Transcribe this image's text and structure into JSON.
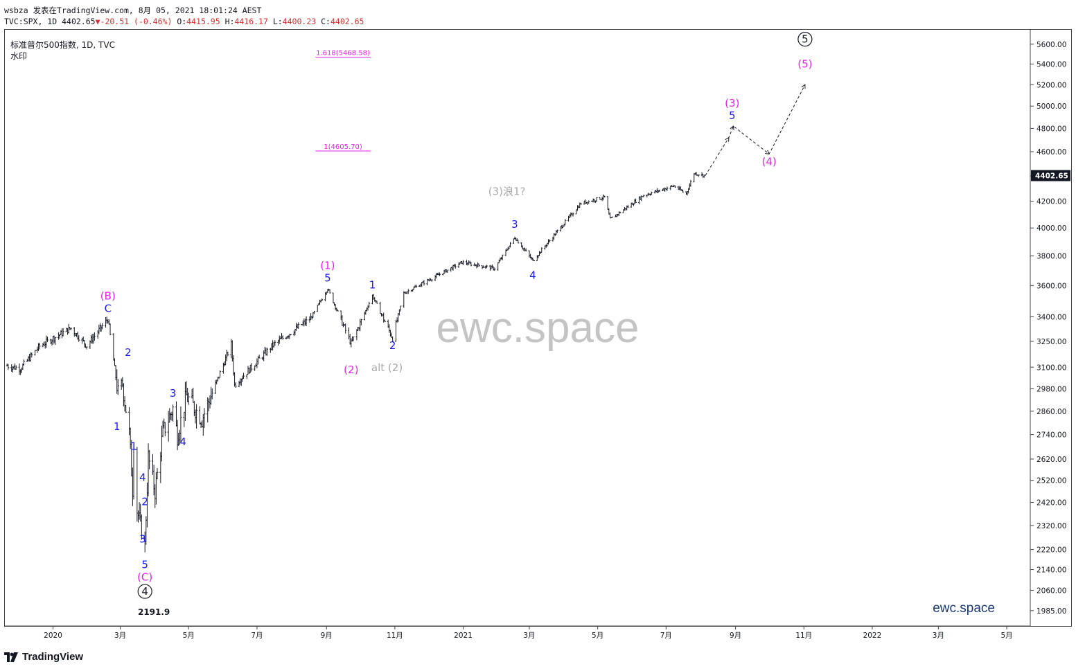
{
  "header": {
    "publisher": "wsbza 发表在TradingView.com, 8月 05, 2021 18:01:24 AEST",
    "ticker": "TVC:SPX, 1D",
    "last": "4402.65",
    "change": "-20.51 (-0.46%)",
    "o_label": "O:",
    "o_value": "4415.95",
    "h_label": "H:",
    "h_value": "4416.17",
    "l_label": "L:",
    "l_value": "4400.23",
    "c_label": "C:",
    "c_value": "4402.65",
    "down_arrow": "▼"
  },
  "symbol_info": {
    "name": "标准普尔500指数, 1D, TVC",
    "sub": "水印"
  },
  "watermark": "ewc.space",
  "brand_corner": "ewc.space",
  "footer": {
    "logo_text": "TradingView"
  },
  "colors": {
    "magenta": "#e91ee9",
    "blue": "#1a1aee",
    "gray": "#a9a9a9",
    "candle": "#131722",
    "price_tag": "#131722"
  },
  "chart_data": {
    "type": "ohlc",
    "title": "",
    "ylabel": "",
    "yscale": "log",
    "ylim": [
      1930,
      5750
    ],
    "y_ticks": [
      5600,
      5400,
      5200,
      5000,
      4800,
      4600,
      4400,
      4200,
      4000,
      3800,
      3600,
      3400,
      3250,
      3100,
      2980,
      2860,
      2740,
      2620,
      2520,
      2420,
      2320,
      2220,
      2140,
      2060,
      1985
    ],
    "y_tick_labels": [
      "5600.00",
      "5400.00",
      "5200.00",
      "5000.00",
      "4800.00",
      "4600.00",
      "4400.00",
      "4200.00",
      "4000.00",
      "3800.00",
      "3600.00",
      "3400.00",
      "3250.00",
      "3100.00",
      "2980.00",
      "2860.00",
      "2740.00",
      "2620.00",
      "2520.00",
      "2420.00",
      "2320.00",
      "2220.00",
      "2140.00",
      "2060.00",
      "1985.00"
    ],
    "last_price_label": "4402.65",
    "x_ticks": [
      {
        "label": "2020",
        "date": "2020-01-01"
      },
      {
        "label": "3月",
        "date": "2020-03-01"
      },
      {
        "label": "5月",
        "date": "2020-05-01"
      },
      {
        "label": "7月",
        "date": "2020-07-01"
      },
      {
        "label": "9月",
        "date": "2020-09-01"
      },
      {
        "label": "11月",
        "date": "2020-11-01"
      },
      {
        "label": "2021",
        "date": "2021-01-01"
      },
      {
        "label": "3月",
        "date": "2021-03-01"
      },
      {
        "label": "5月",
        "date": "2021-05-01"
      },
      {
        "label": "7月",
        "date": "2021-07-01"
      },
      {
        "label": "9月",
        "date": "2021-09-01"
      },
      {
        "label": "11月",
        "date": "2021-11-01"
      },
      {
        "label": "2022",
        "date": "2022-01-01"
      },
      {
        "label": "3月",
        "date": "2022-03-01"
      },
      {
        "label": "5月",
        "date": "2022-05-01"
      }
    ],
    "price_path": [
      [
        "2019-11-21",
        3108
      ],
      [
        "2019-12-03",
        3093
      ],
      [
        "2019-12-20",
        3222
      ],
      [
        "2020-01-17",
        3330
      ],
      [
        "2020-01-31",
        3225
      ],
      [
        "2020-02-19",
        3386
      ],
      [
        "2020-02-28",
        2954
      ],
      [
        "2020-03-03",
        3003
      ],
      [
        "2020-03-09",
        2746
      ],
      [
        "2020-03-12",
        2480
      ],
      [
        "2020-03-13",
        2711
      ],
      [
        "2020-03-16",
        2386
      ],
      [
        "2020-03-23",
        2237
      ],
      [
        "2020-03-26",
        2630
      ],
      [
        "2020-04-01",
        2470
      ],
      [
        "2020-04-08",
        2750
      ],
      [
        "2020-04-17",
        2875
      ],
      [
        "2020-04-21",
        2737
      ],
      [
        "2020-04-29",
        2940
      ],
      [
        "2020-05-13",
        2820
      ],
      [
        "2020-06-08",
        3232
      ],
      [
        "2020-06-11",
        3002
      ],
      [
        "2020-07-15",
        3227
      ],
      [
        "2020-08-18",
        3390
      ],
      [
        "2020-09-02",
        3580
      ],
      [
        "2020-09-23",
        3237
      ],
      [
        "2020-10-12",
        3535
      ],
      [
        "2020-10-30",
        3270
      ],
      [
        "2020-11-09",
        3550
      ],
      [
        "2020-12-31",
        3756
      ],
      [
        "2021-01-29",
        3714
      ],
      [
        "2021-02-16",
        3932
      ],
      [
        "2021-03-04",
        3768
      ],
      [
        "2021-04-16",
        4185
      ],
      [
        "2021-05-07",
        4232
      ],
      [
        "2021-05-12",
        4063
      ],
      [
        "2021-06-11",
        4247
      ],
      [
        "2021-07-08",
        4320
      ],
      [
        "2021-07-19",
        4258
      ],
      [
        "2021-07-26",
        4422
      ],
      [
        "2021-08-05",
        4402.65
      ]
    ],
    "projection": [
      [
        "2021-08-05",
        4402.65
      ],
      [
        "2021-08-26",
        4720
      ],
      [
        "2021-08-30",
        4820
      ],
      [
        "2021-10-01",
        4580
      ],
      [
        "2021-11-02",
        5200
      ]
    ],
    "fib_levels": [
      {
        "label": "1.618(5468.58)",
        "value": 5468.58
      },
      {
        "label": "1(4605.70)",
        "value": 4605.7
      }
    ],
    "annotations": [
      {
        "text": "(B)",
        "color": "magenta",
        "date": "2020-02-19",
        "price": 3386,
        "pos": "above2"
      },
      {
        "text": "C",
        "color": "blue",
        "date": "2020-02-19",
        "price": 3386,
        "pos": "above"
      },
      {
        "text": "2",
        "color": "blue",
        "date": "2020-03-03",
        "price": 3180,
        "pos": "right"
      },
      {
        "text": "1",
        "color": "blue",
        "date": "2020-02-27",
        "price": 2820,
        "pos": "below"
      },
      {
        "text": "1",
        "color": "blue",
        "date": "2020-03-13",
        "price": 2720,
        "pos": "below"
      },
      {
        "text": "4",
        "color": "blue",
        "date": "2020-03-16",
        "price": 2530,
        "pos": "right"
      },
      {
        "text": "2",
        "color": "blue",
        "date": "2020-03-18",
        "price": 2420,
        "pos": "right"
      },
      {
        "text": "3",
        "color": "blue",
        "date": "2020-03-16",
        "price": 2260,
        "pos": "right"
      },
      {
        "text": "5",
        "color": "blue",
        "date": "2020-03-23",
        "price": 2190,
        "pos": "below"
      },
      {
        "text": "(C)",
        "color": "magenta",
        "date": "2020-03-23",
        "price": 2140,
        "pos": "below"
      },
      {
        "text": "4",
        "color": "black",
        "circle": true,
        "date": "2020-03-23",
        "price": 2085,
        "pos": "below"
      },
      {
        "text": "2191.9",
        "color": "black",
        "bold": true,
        "date": "2020-03-31",
        "price": 2010,
        "pos": "below"
      },
      {
        "text": "3",
        "color": "blue",
        "date": "2020-04-17",
        "price": 2900,
        "pos": "above"
      },
      {
        "text": "4",
        "color": "blue",
        "date": "2020-04-21",
        "price": 2700,
        "pos": "right"
      },
      {
        "text": "(1)",
        "color": "magenta",
        "date": "2020-09-02",
        "price": 3580,
        "pos": "above2"
      },
      {
        "text": "5",
        "color": "blue",
        "date": "2020-09-02",
        "price": 3580,
        "pos": "above"
      },
      {
        "text": "(2)",
        "color": "magenta",
        "date": "2020-09-23",
        "price": 3200,
        "pos": "below2"
      },
      {
        "text": "1",
        "color": "blue",
        "date": "2020-10-12",
        "price": 3535,
        "pos": "above"
      },
      {
        "text": "2",
        "color": "blue",
        "date": "2020-10-30",
        "price": 3270,
        "pos": "below"
      },
      {
        "text": "alt (2)",
        "color": "gray",
        "date": "2020-10-25",
        "price": 3140,
        "pos": "below"
      },
      {
        "text": "(3)浪1?",
        "color": "gray",
        "date": "2021-02-09",
        "price": 4100,
        "pos": "above2"
      },
      {
        "text": "3",
        "color": "blue",
        "date": "2021-02-16",
        "price": 3950,
        "pos": "above"
      },
      {
        "text": "4",
        "color": "blue",
        "date": "2021-03-04",
        "price": 3720,
        "pos": "below"
      },
      {
        "text": "(3)",
        "color": "magenta",
        "date": "2021-08-29",
        "price": 4820,
        "pos": "above2"
      },
      {
        "text": "5",
        "color": "blue",
        "date": "2021-08-29",
        "price": 4820,
        "pos": "above"
      },
      {
        "text": "(4)",
        "color": "magenta",
        "date": "2021-10-01",
        "price": 4580,
        "pos": "below"
      },
      {
        "text": "(5)",
        "color": "magenta",
        "date": "2021-11-02",
        "price": 5300,
        "pos": "above"
      },
      {
        "text": "5",
        "color": "black",
        "circle": true,
        "date": "2021-11-02",
        "price": 5420,
        "pos": "above2"
      }
    ],
    "grid": false
  }
}
